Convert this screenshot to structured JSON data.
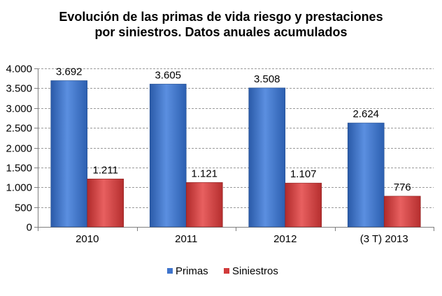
{
  "chart_data": {
    "type": "bar",
    "title": "Evolución de las primas de vida riesgo y prestaciones por siniestros. Datos anuales acumulados",
    "title_lines": [
      "Evolución de las primas de vida riesgo y prestaciones",
      "por siniestros. Datos anuales acumulados"
    ],
    "categories": [
      "2010",
      "2011",
      "2012",
      "(3 T) 2013"
    ],
    "series": [
      {
        "name": "Primas",
        "values": [
          3692,
          3605,
          3508,
          2624
        ],
        "labels": [
          "3.692",
          "3.605",
          "3.508",
          "2.624"
        ],
        "color": "#3f74cc"
      },
      {
        "name": "Siniestros",
        "values": [
          1211,
          1121,
          1107,
          776
        ],
        "labels": [
          "1.211",
          "1.121",
          "1.107",
          "776"
        ],
        "color": "#d13b3b"
      }
    ],
    "ylim": [
      0,
      4000
    ],
    "yticks": [
      0,
      500,
      1000,
      1500,
      2000,
      2500,
      3000,
      3500,
      4000
    ],
    "ytick_labels": [
      "0",
      "500",
      "1.000",
      "1.500",
      "2.000",
      "2.500",
      "3.000",
      "3.500",
      "4.000"
    ],
    "grid": true,
    "legend_position": "bottom",
    "xlabel": "",
    "ylabel": ""
  }
}
